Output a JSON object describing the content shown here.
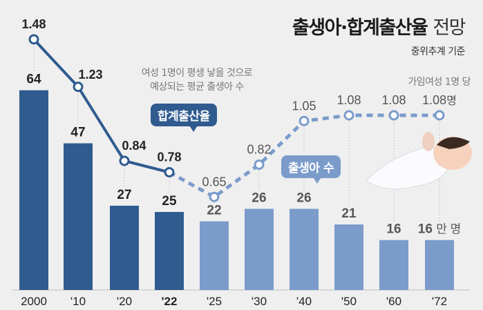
{
  "title_bold": "출생아·합계출산율",
  "title_light": "전망",
  "subtitle": "중위추계 기준",
  "note_line1": "여성 1명이 평생 낳을 것으로",
  "note_line2": "예상되는 평균 출생아 수",
  "unit_note": "가임여성 1명 당",
  "callout_rate": "합계출산율",
  "callout_births": "출생아 수",
  "colors": {
    "actual": "#2f5b8f",
    "projected": "#7b9ccb",
    "text": "#333333",
    "muted": "#777777"
  },
  "chart_data": {
    "type": "bar+line",
    "categories": [
      "2000",
      "'10",
      "'20",
      "'22",
      "'25",
      "'30",
      "'40",
      "'50",
      "'60",
      "'72"
    ],
    "highlight_category": "'22",
    "series": [
      {
        "name": "출생아 수",
        "unit": "만 명",
        "type": "bar",
        "values": [
          64,
          47,
          27,
          25,
          22,
          26,
          26,
          21,
          16,
          16
        ],
        "projected_from_index": 4
      },
      {
        "name": "합계출산율",
        "unit": "명",
        "type": "line",
        "values": [
          1.48,
          1.23,
          0.84,
          0.78,
          0.65,
          0.82,
          1.05,
          1.08,
          1.08,
          1.08
        ],
        "projected_from_index": 3
      }
    ],
    "last_bar_suffix": "만 명",
    "last_line_suffix": "명"
  }
}
